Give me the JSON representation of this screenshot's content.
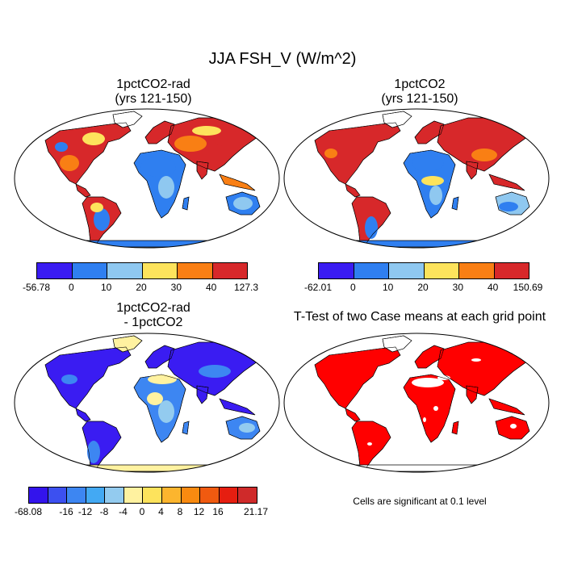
{
  "title": "JJA FSH_V (W/m^2)",
  "panels": [
    {
      "title_line1": "1pctCO2-rad",
      "title_line2": "(yrs 121-150)"
    },
    {
      "title_line1": "1pctCO2",
      "title_line2": "(yrs 121-150)"
    },
    {
      "title_line1": "1pctCO2-rad",
      "title_line2": "- 1pctCO2"
    },
    {
      "title_line1": "T-Test of two Case means at each grid point",
      "title_line2": ""
    }
  ],
  "note": "Cells are significant at 0.1 level",
  "colorbars": [
    {
      "colors": [
        "#3a1cf2",
        "#2f7ff0",
        "#8fc8f0",
        "#fde35c",
        "#f97f14",
        "#d7282a"
      ],
      "labels": [
        "-56.78",
        "0",
        "10",
        "20",
        "30",
        "40",
        "127.3"
      ]
    },
    {
      "colors": [
        "#3a1cf2",
        "#2f7ff0",
        "#8fc8f0",
        "#fde35c",
        "#f97f14",
        "#d7282a"
      ],
      "labels": [
        "-62.01",
        "0",
        "10",
        "20",
        "30",
        "40",
        "150.69"
      ]
    },
    {
      "colors": [
        "#3314ec",
        "#3c50f0",
        "#3d86f2",
        "#43a9f3",
        "#93cbef",
        "#fff2a0",
        "#fde35c",
        "#fcb52e",
        "#f98a10",
        "#f05a10",
        "#e61e10",
        "#cf2a2a"
      ],
      "labels": [
        "-68.08",
        "",
        "-16",
        "-12",
        "-8",
        "-4",
        "0",
        "4",
        "8",
        "12",
        "16",
        "",
        "21.17"
      ]
    }
  ],
  "map_colors": {
    "land_warm": "#d7282a",
    "land_mid": "#f97f14",
    "land_blue": "#2f7ff0",
    "land_light": "#8fc8f0",
    "land_yellow": "#fde35c",
    "diff_blue": "#3a1cf2",
    "diff_mid": "#3d86f2",
    "diff_light": "#93cbef",
    "diff_yellow": "#fff2a0",
    "sig_red": "#ff0000",
    "ocean": "#ffffff"
  }
}
